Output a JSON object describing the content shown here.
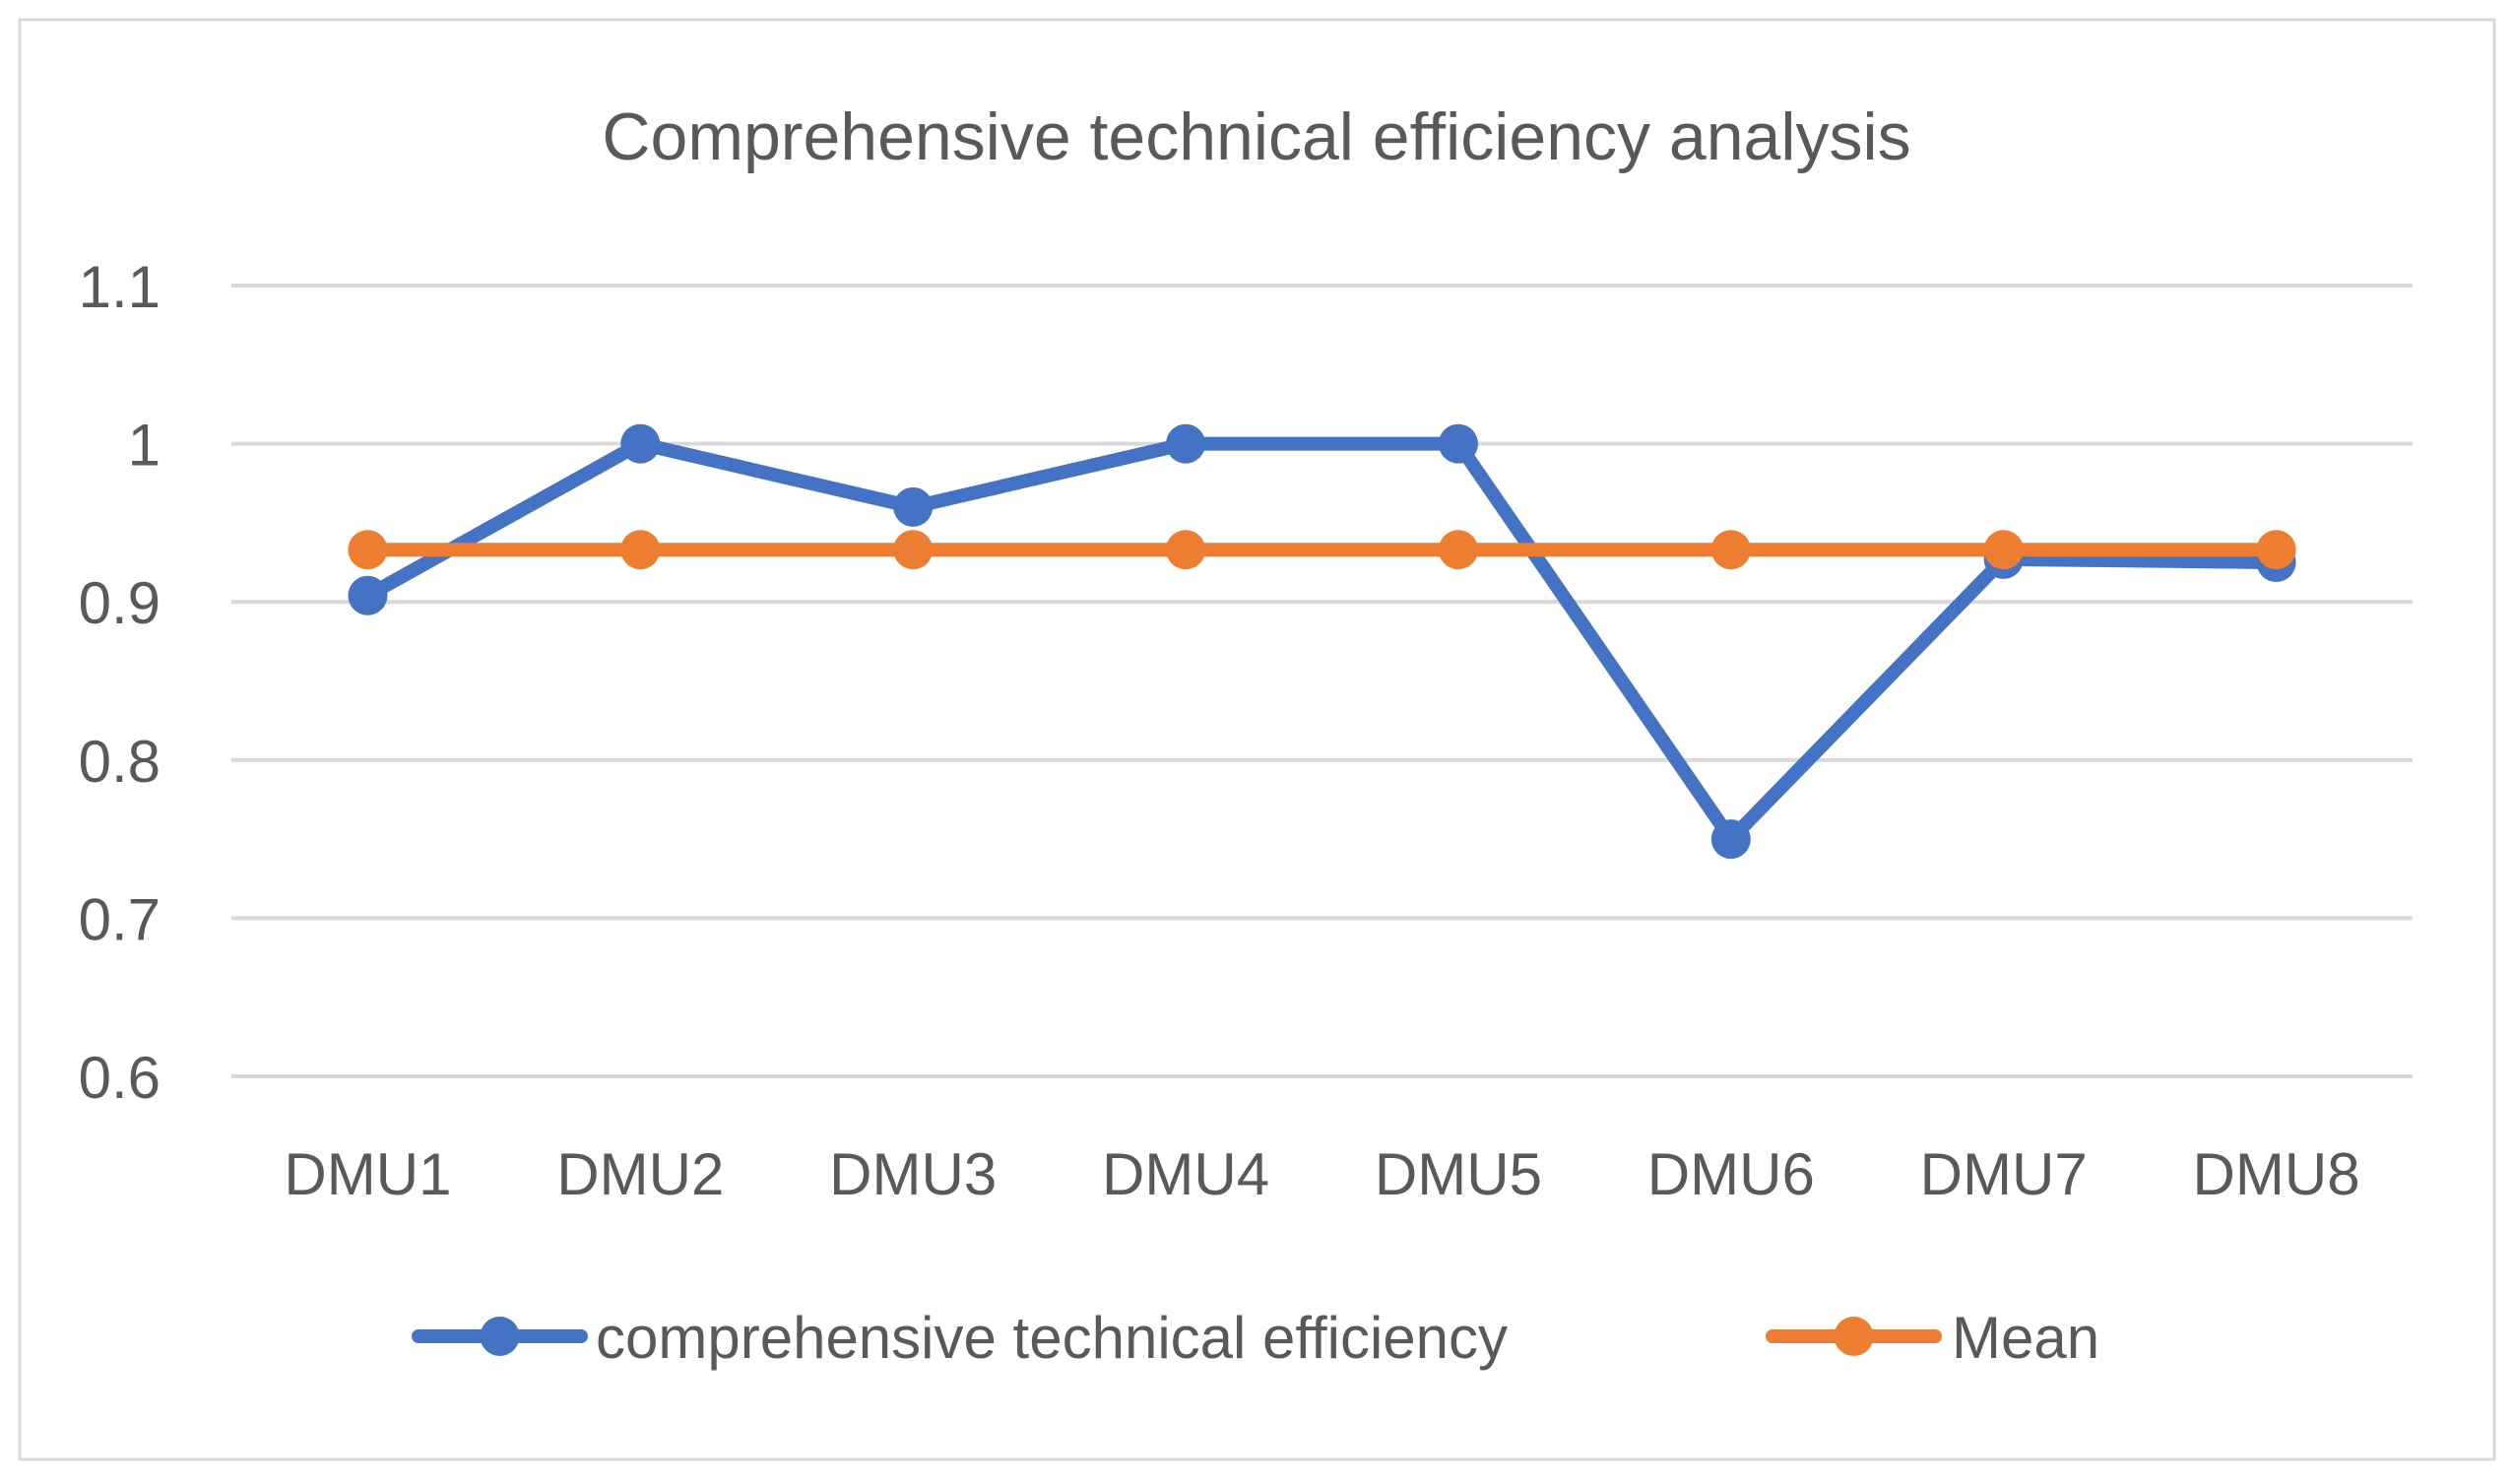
{
  "chart_data": {
    "type": "line",
    "title": "Comprehensive technical efficiency analysis",
    "categories": [
      "DMU1",
      "DMU2",
      "DMU3",
      "DMU4",
      "DMU5",
      "DMU6",
      "DMU7",
      "DMU8"
    ],
    "ylim": [
      0.6,
      1.1
    ],
    "yticks": [
      "0.6",
      "0.7",
      "0.8",
      "0.9",
      "1",
      "1.1"
    ],
    "grid": true,
    "legend_position": "bottom",
    "xlabel": "",
    "ylabel": "",
    "series": [
      {
        "name": "comprehensive technical efficiency",
        "color": "#4472C4",
        "values": [
          0.904,
          1.0,
          0.96,
          1.0,
          1.0,
          0.75,
          0.927,
          0.925
        ]
      },
      {
        "name": "Mean",
        "color": "#ED7D31",
        "values": [
          0.933,
          0.933,
          0.933,
          0.933,
          0.933,
          0.933,
          0.933,
          0.933
        ]
      }
    ]
  }
}
